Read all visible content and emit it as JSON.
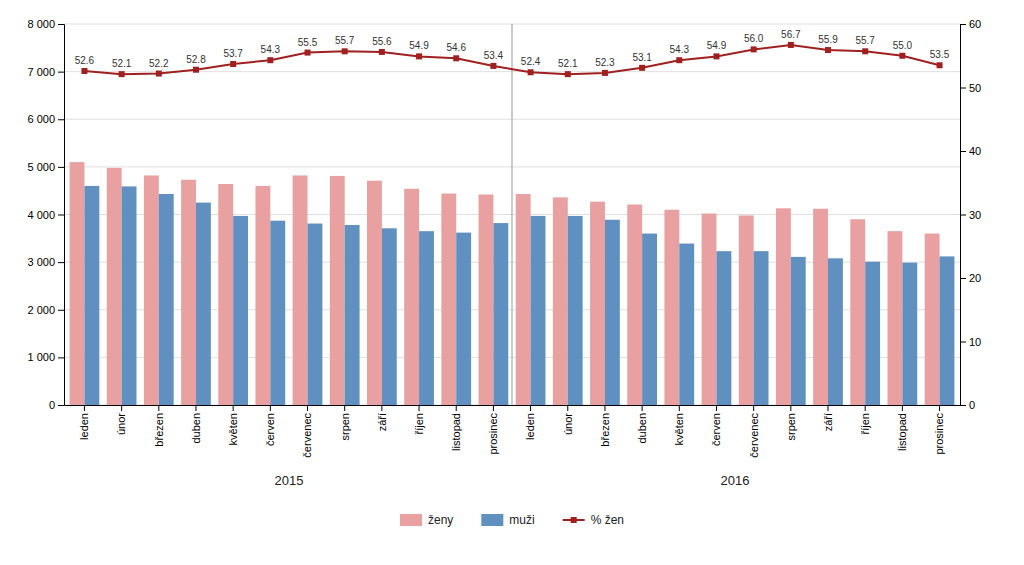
{
  "chart_data": {
    "type": "bar",
    "categories": [
      "leden",
      "únor",
      "březen",
      "duben",
      "květen",
      "červen",
      "červenec",
      "srpen",
      "září",
      "říjen",
      "listopad",
      "prosinec",
      "leden",
      "únor",
      "březen",
      "duben",
      "květen",
      "červen",
      "červenec",
      "srpen",
      "září",
      "říjen",
      "listopad",
      "prosinec"
    ],
    "series": [
      {
        "name": "ženy",
        "type": "bar",
        "color": "#e8a0a0",
        "values": [
          5100,
          4980,
          4820,
          4730,
          4640,
          4600,
          4820,
          4810,
          4710,
          4540,
          4440,
          4420,
          4430,
          4360,
          4270,
          4210,
          4100,
          4020,
          3980,
          4130,
          4120,
          3900,
          3650,
          3600
        ]
      },
      {
        "name": "muži",
        "type": "bar",
        "color": "#6090c0",
        "values": [
          4600,
          4590,
          4430,
          4250,
          3970,
          3870,
          3810,
          3780,
          3710,
          3650,
          3620,
          3820,
          3970,
          3970,
          3890,
          3600,
          3390,
          3230,
          3230,
          3110,
          3080,
          3010,
          2990,
          3120
        ]
      },
      {
        "name": "% žen",
        "type": "line",
        "axis": "y2",
        "color": "#a02020",
        "marker": "square",
        "data_labels": true,
        "values": [
          52.6,
          52.1,
          52.2,
          52.8,
          53.7,
          54.3,
          55.5,
          55.7,
          55.6,
          54.9,
          54.6,
          53.4,
          52.4,
          52.1,
          52.3,
          53.1,
          54.3,
          54.9,
          56.0,
          56.7,
          55.9,
          55.7,
          55.0,
          53.5
        ],
        "value_labels": [
          "52.6",
          "52.1",
          "52.2",
          "52.8",
          "53.7",
          "54.3",
          "55.5",
          "55.7",
          "55.6",
          "54.9",
          "54.6",
          "53.4",
          "52.4",
          "52.1",
          "52.3",
          "53.1",
          "54.3",
          "54.9",
          "56.0",
          "56.7",
          "55.9",
          "55.7",
          "55.0",
          "53.5"
        ]
      }
    ],
    "ylim": [
      0,
      8000
    ],
    "yticks": [
      0,
      {
        "value": 1000,
        "label": "1 000"
      },
      {
        "value": 2000,
        "label": "2 000"
      },
      {
        "value": 3000,
        "label": "3 000"
      },
      {
        "value": 4000,
        "label": "4 000"
      },
      {
        "value": 5000,
        "label": "5 000"
      },
      {
        "value": 6000,
        "label": "6 000"
      },
      {
        "value": 7000,
        "label": "7 000"
      },
      {
        "value": 8000,
        "label": "8 000"
      }
    ],
    "y2lim": [
      0,
      60
    ],
    "y2ticks": [
      0,
      10,
      20,
      30,
      40,
      50,
      60
    ],
    "annotations": [
      {
        "text": "2015"
      },
      {
        "text": "2016"
      }
    ],
    "grid": true,
    "legend": "bottom"
  }
}
